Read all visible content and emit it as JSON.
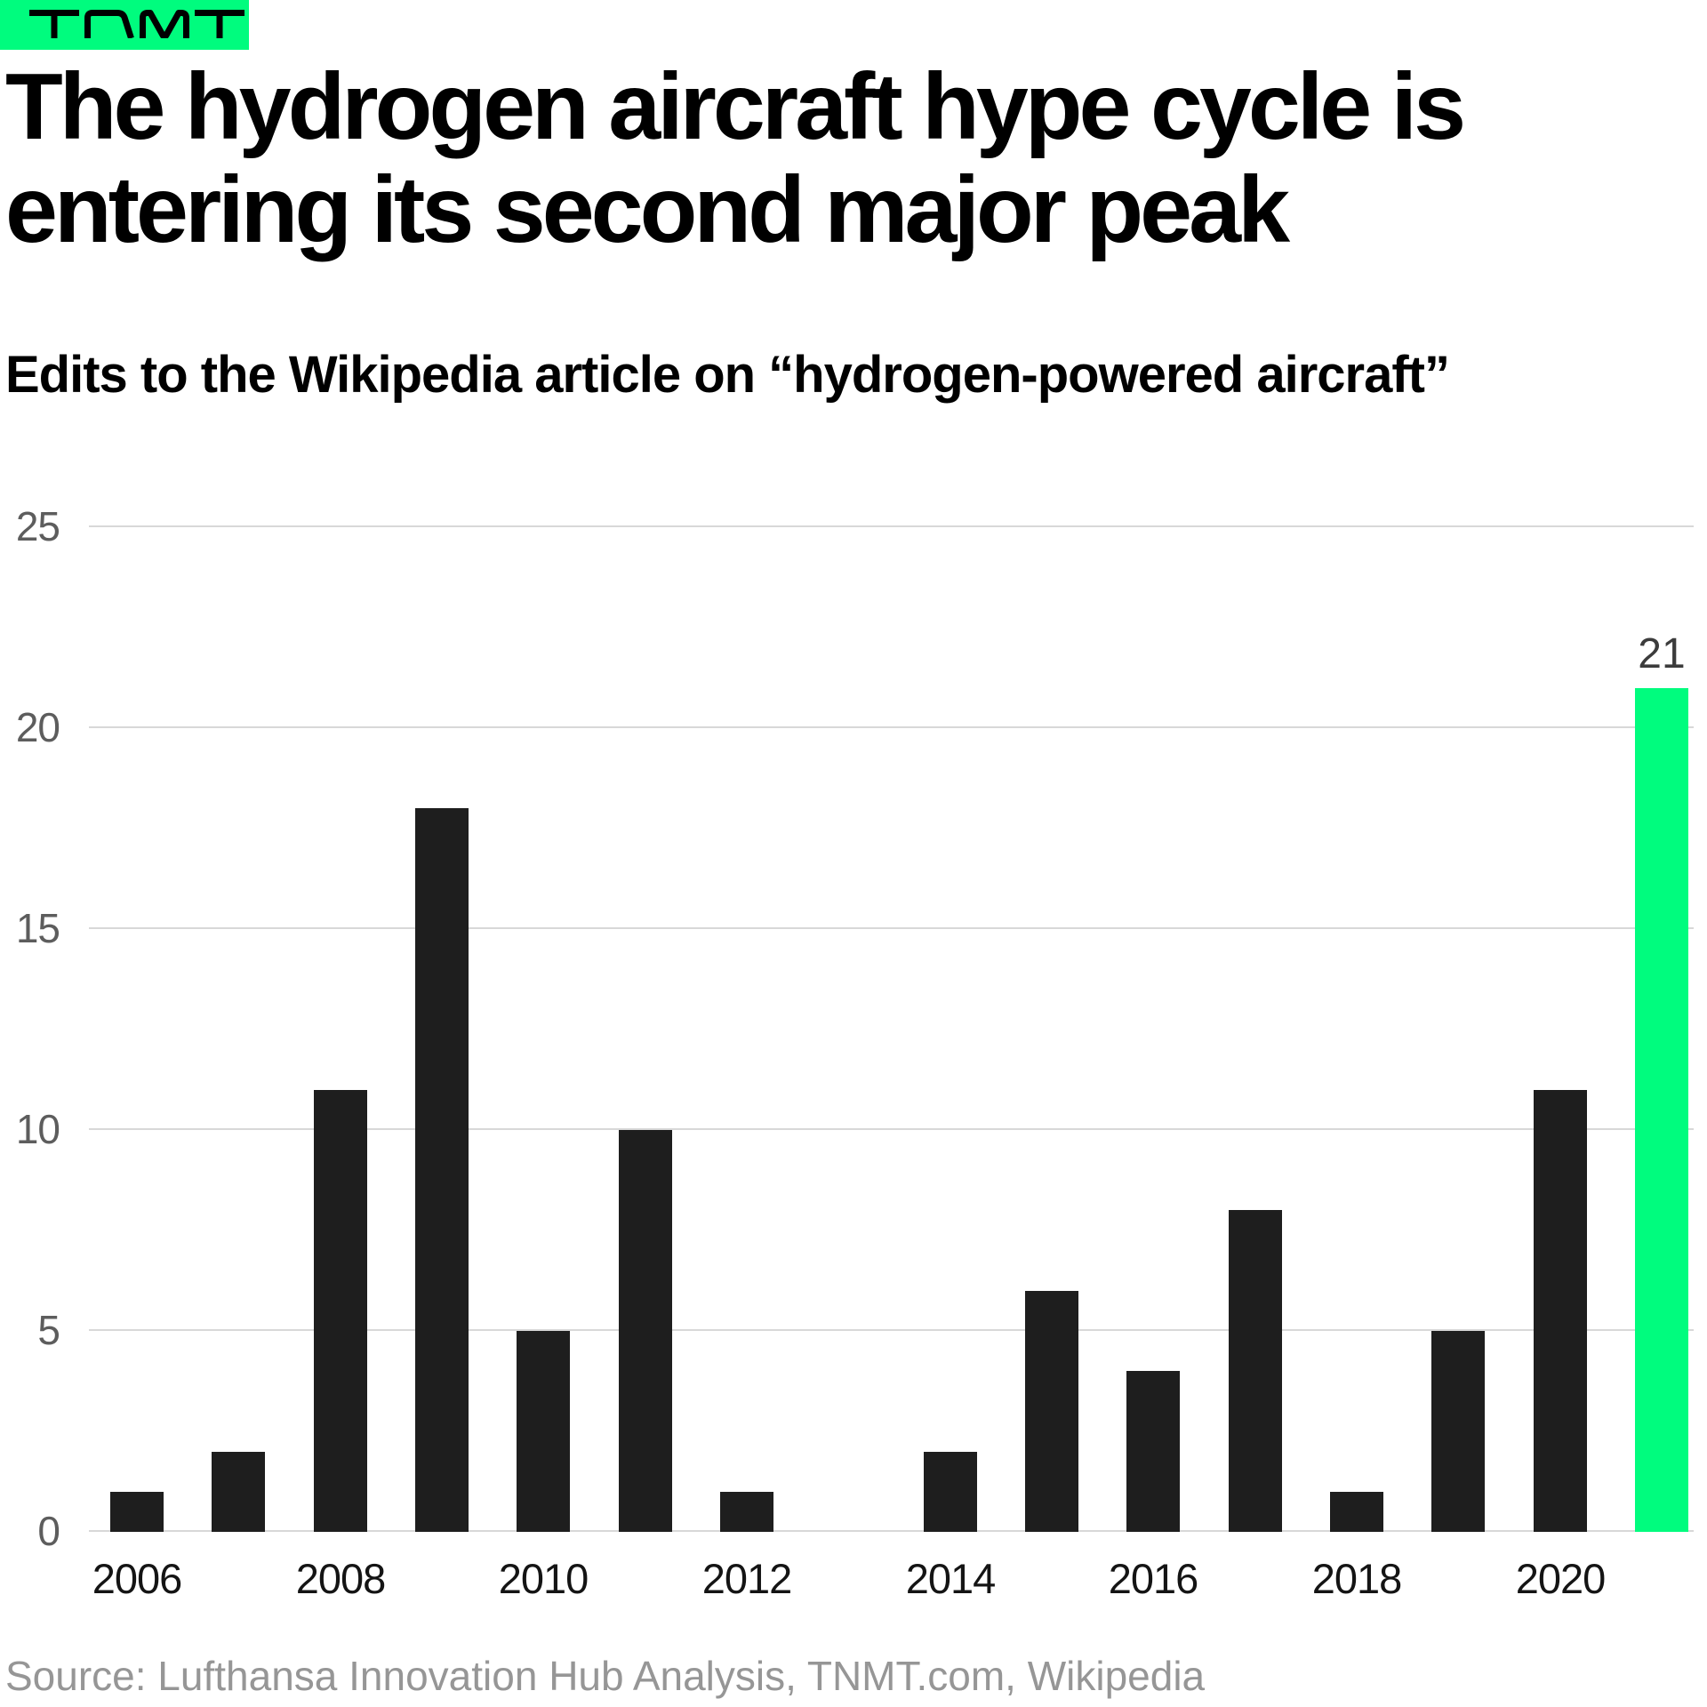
{
  "logo": {
    "text": "TNMT",
    "bg_color": "#00fc7e"
  },
  "header": {
    "title_line1": "The hydrogen aircraft hype cycle is",
    "title_line2": "entering its second major peak",
    "subtitle": "Edits to the Wikipedia article on “hydrogen-powered aircraft”"
  },
  "chart_data": {
    "type": "bar",
    "title": "The hydrogen aircraft hype cycle is entering its second major peak",
    "subtitle": "Edits to the Wikipedia article on “hydrogen-powered aircraft”",
    "categories": [
      2006,
      2007,
      2008,
      2009,
      2010,
      2011,
      2012,
      2013,
      2014,
      2015,
      2016,
      2017,
      2018,
      2019,
      2020,
      2021
    ],
    "values": [
      1,
      2,
      11,
      18,
      5,
      10,
      1,
      0,
      2,
      6,
      4,
      8,
      1,
      5,
      11,
      21
    ],
    "x_tick_labels": [
      "2006",
      "2008",
      "2010",
      "2012",
      "2014",
      "2016",
      "2018",
      "2020"
    ],
    "y_ticks": [
      0,
      5,
      10,
      15,
      20,
      25
    ],
    "ylim": [
      0,
      25
    ],
    "xlabel": "",
    "ylabel": "",
    "grid": "horizontal",
    "legend_position": "none",
    "bar_color": "#1e1e1e",
    "highlight": {
      "category": 2021,
      "color": "#00fc7e",
      "data_label": "21"
    }
  },
  "footer": {
    "source": "Source: Lufthansa Innovation Hub Analysis, TNMT.com, Wikipedia"
  },
  "colors": {
    "background": "#ffffff",
    "accent_green": "#00fc7e",
    "bar_dark": "#1e1e1e",
    "gridline": "#d8d8d8",
    "y_tick_text": "#5d5d5d",
    "x_tick_text": "#141414",
    "annotation_text": "#3c3c3c",
    "source_text": "#969696",
    "title_text": "#000000"
  }
}
